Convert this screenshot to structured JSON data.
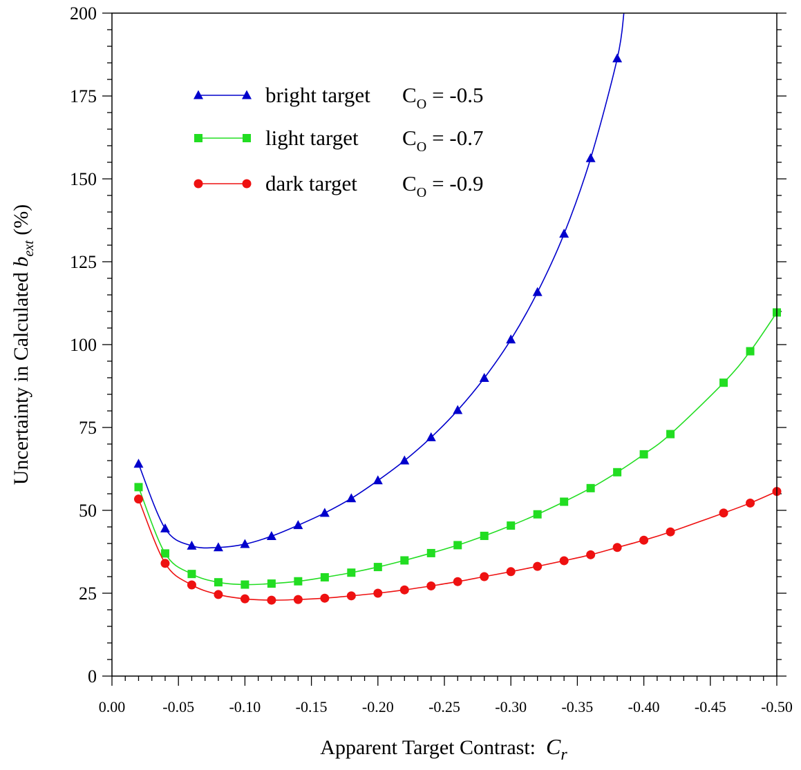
{
  "chart_data": {
    "type": "line",
    "x_axis": {
      "label_prefix": "Apparent Target Contrast:  ",
      "label_var": "C",
      "label_var_sub": "r",
      "range": [
        0.0,
        -0.5
      ],
      "ticks": [
        0.0,
        -0.05,
        -0.1,
        -0.15,
        -0.2,
        -0.25,
        -0.3,
        -0.35,
        -0.4,
        -0.45,
        -0.5
      ],
      "tick_labels": [
        "0.00",
        "-0.05",
        "-0.10",
        "-0.15",
        "-0.20",
        "-0.25",
        "-0.30",
        "-0.35",
        "-0.40",
        "-0.45",
        "-0.50"
      ]
    },
    "y_axis": {
      "label_prefix": "Uncertainty in Calculated ",
      "label_var": "b",
      "label_var_sub": "ext",
      "label_suffix": " (%)",
      "range": [
        0,
        200
      ],
      "ticks": [
        0,
        25,
        50,
        75,
        100,
        125,
        150,
        175,
        200
      ],
      "tick_labels": [
        "0",
        "25",
        "50",
        "75",
        "100",
        "125",
        "150",
        "175",
        "200"
      ]
    },
    "grid": false,
    "legend_position": "top-left",
    "series": [
      {
        "name_text": "bright target",
        "co_label": "C",
        "co_sub": "O",
        "co_value": "= -0.5",
        "color": "#0000cc",
        "marker": "triangle",
        "points": [
          [
            -0.02,
            64
          ],
          [
            -0.04,
            44.5
          ],
          [
            -0.06,
            39.3
          ],
          [
            -0.08,
            38.8
          ],
          [
            -0.1,
            39.8
          ],
          [
            -0.12,
            42.2
          ],
          [
            -0.14,
            45.5
          ],
          [
            -0.16,
            49.2
          ],
          [
            -0.18,
            53.6
          ],
          [
            -0.2,
            59
          ],
          [
            -0.22,
            65
          ],
          [
            -0.24,
            72
          ],
          [
            -0.26,
            80.2
          ],
          [
            -0.28,
            89.9
          ],
          [
            -0.3,
            101.5
          ],
          [
            -0.32,
            115.8
          ],
          [
            -0.34,
            133.4
          ],
          [
            -0.36,
            156.2
          ],
          [
            -0.38,
            186.3
          ]
        ],
        "curve_end": [
          -0.385,
          200
        ]
      },
      {
        "name_text": "light target",
        "co_label": "C",
        "co_sub": "O",
        "co_value": "= -0.7",
        "color": "#22dd22",
        "marker": "square",
        "points": [
          [
            -0.02,
            57
          ],
          [
            -0.04,
            37
          ],
          [
            -0.06,
            30.8
          ],
          [
            -0.08,
            28.3
          ],
          [
            -0.1,
            27.6
          ],
          [
            -0.12,
            27.9
          ],
          [
            -0.14,
            28.6
          ],
          [
            -0.16,
            29.8
          ],
          [
            -0.18,
            31.2
          ],
          [
            -0.2,
            32.9
          ],
          [
            -0.22,
            34.9
          ],
          [
            -0.24,
            37.1
          ],
          [
            -0.26,
            39.5
          ],
          [
            -0.28,
            42.3
          ],
          [
            -0.3,
            45.4
          ],
          [
            -0.32,
            48.8
          ],
          [
            -0.34,
            52.6
          ],
          [
            -0.36,
            56.7
          ],
          [
            -0.38,
            61.5
          ],
          [
            -0.4,
            66.9
          ],
          [
            -0.42,
            73
          ],
          [
            -0.46,
            88.5
          ],
          [
            -0.48,
            98
          ],
          [
            -0.5,
            109.7
          ]
        ]
      },
      {
        "name_text": "dark target",
        "co_label": "C",
        "co_sub": "O",
        "co_value": "= -0.9",
        "color": "#ee1111",
        "marker": "circle",
        "points": [
          [
            -0.02,
            53.4
          ],
          [
            -0.04,
            34
          ],
          [
            -0.06,
            27.5
          ],
          [
            -0.08,
            24.6
          ],
          [
            -0.1,
            23.3
          ],
          [
            -0.12,
            22.9
          ],
          [
            -0.14,
            23.1
          ],
          [
            -0.16,
            23.5
          ],
          [
            -0.18,
            24.2
          ],
          [
            -0.2,
            25
          ],
          [
            -0.22,
            26
          ],
          [
            -0.24,
            27.2
          ],
          [
            -0.26,
            28.5
          ],
          [
            -0.28,
            30
          ],
          [
            -0.3,
            31.5
          ],
          [
            -0.32,
            33.1
          ],
          [
            -0.34,
            34.8
          ],
          [
            -0.36,
            36.6
          ],
          [
            -0.38,
            38.8
          ],
          [
            -0.4,
            41
          ],
          [
            -0.42,
            43.5
          ],
          [
            -0.46,
            49.2
          ],
          [
            -0.48,
            52.2
          ],
          [
            -0.5,
            55.7
          ]
        ]
      }
    ]
  }
}
